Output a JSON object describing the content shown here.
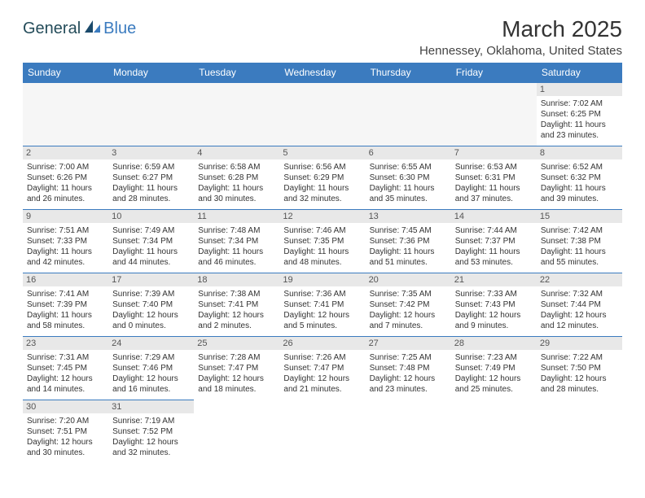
{
  "logo": {
    "general": "General",
    "blue": "Blue"
  },
  "title": "March 2025",
  "location": "Hennessey, Oklahoma, United States",
  "weekdays": [
    "Sunday",
    "Monday",
    "Tuesday",
    "Wednesday",
    "Thursday",
    "Friday",
    "Saturday"
  ],
  "colors": {
    "header_bg": "#3b7bbf",
    "header_text": "#ffffff",
    "daynum_bg": "#e8e8e8",
    "cell_border": "#3b7bbf",
    "empty_bg": "#f6f6f6",
    "text": "#333333"
  },
  "grid": [
    [
      null,
      null,
      null,
      null,
      null,
      null,
      {
        "n": "1",
        "sr": "Sunrise: 7:02 AM",
        "ss": "Sunset: 6:25 PM",
        "dl": "Daylight: 11 hours and 23 minutes."
      }
    ],
    [
      {
        "n": "2",
        "sr": "Sunrise: 7:00 AM",
        "ss": "Sunset: 6:26 PM",
        "dl": "Daylight: 11 hours and 26 minutes."
      },
      {
        "n": "3",
        "sr": "Sunrise: 6:59 AM",
        "ss": "Sunset: 6:27 PM",
        "dl": "Daylight: 11 hours and 28 minutes."
      },
      {
        "n": "4",
        "sr": "Sunrise: 6:58 AM",
        "ss": "Sunset: 6:28 PM",
        "dl": "Daylight: 11 hours and 30 minutes."
      },
      {
        "n": "5",
        "sr": "Sunrise: 6:56 AM",
        "ss": "Sunset: 6:29 PM",
        "dl": "Daylight: 11 hours and 32 minutes."
      },
      {
        "n": "6",
        "sr": "Sunrise: 6:55 AM",
        "ss": "Sunset: 6:30 PM",
        "dl": "Daylight: 11 hours and 35 minutes."
      },
      {
        "n": "7",
        "sr": "Sunrise: 6:53 AM",
        "ss": "Sunset: 6:31 PM",
        "dl": "Daylight: 11 hours and 37 minutes."
      },
      {
        "n": "8",
        "sr": "Sunrise: 6:52 AM",
        "ss": "Sunset: 6:32 PM",
        "dl": "Daylight: 11 hours and 39 minutes."
      }
    ],
    [
      {
        "n": "9",
        "sr": "Sunrise: 7:51 AM",
        "ss": "Sunset: 7:33 PM",
        "dl": "Daylight: 11 hours and 42 minutes."
      },
      {
        "n": "10",
        "sr": "Sunrise: 7:49 AM",
        "ss": "Sunset: 7:34 PM",
        "dl": "Daylight: 11 hours and 44 minutes."
      },
      {
        "n": "11",
        "sr": "Sunrise: 7:48 AM",
        "ss": "Sunset: 7:34 PM",
        "dl": "Daylight: 11 hours and 46 minutes."
      },
      {
        "n": "12",
        "sr": "Sunrise: 7:46 AM",
        "ss": "Sunset: 7:35 PM",
        "dl": "Daylight: 11 hours and 48 minutes."
      },
      {
        "n": "13",
        "sr": "Sunrise: 7:45 AM",
        "ss": "Sunset: 7:36 PM",
        "dl": "Daylight: 11 hours and 51 minutes."
      },
      {
        "n": "14",
        "sr": "Sunrise: 7:44 AM",
        "ss": "Sunset: 7:37 PM",
        "dl": "Daylight: 11 hours and 53 minutes."
      },
      {
        "n": "15",
        "sr": "Sunrise: 7:42 AM",
        "ss": "Sunset: 7:38 PM",
        "dl": "Daylight: 11 hours and 55 minutes."
      }
    ],
    [
      {
        "n": "16",
        "sr": "Sunrise: 7:41 AM",
        "ss": "Sunset: 7:39 PM",
        "dl": "Daylight: 11 hours and 58 minutes."
      },
      {
        "n": "17",
        "sr": "Sunrise: 7:39 AM",
        "ss": "Sunset: 7:40 PM",
        "dl": "Daylight: 12 hours and 0 minutes."
      },
      {
        "n": "18",
        "sr": "Sunrise: 7:38 AM",
        "ss": "Sunset: 7:41 PM",
        "dl": "Daylight: 12 hours and 2 minutes."
      },
      {
        "n": "19",
        "sr": "Sunrise: 7:36 AM",
        "ss": "Sunset: 7:41 PM",
        "dl": "Daylight: 12 hours and 5 minutes."
      },
      {
        "n": "20",
        "sr": "Sunrise: 7:35 AM",
        "ss": "Sunset: 7:42 PM",
        "dl": "Daylight: 12 hours and 7 minutes."
      },
      {
        "n": "21",
        "sr": "Sunrise: 7:33 AM",
        "ss": "Sunset: 7:43 PM",
        "dl": "Daylight: 12 hours and 9 minutes."
      },
      {
        "n": "22",
        "sr": "Sunrise: 7:32 AM",
        "ss": "Sunset: 7:44 PM",
        "dl": "Daylight: 12 hours and 12 minutes."
      }
    ],
    [
      {
        "n": "23",
        "sr": "Sunrise: 7:31 AM",
        "ss": "Sunset: 7:45 PM",
        "dl": "Daylight: 12 hours and 14 minutes."
      },
      {
        "n": "24",
        "sr": "Sunrise: 7:29 AM",
        "ss": "Sunset: 7:46 PM",
        "dl": "Daylight: 12 hours and 16 minutes."
      },
      {
        "n": "25",
        "sr": "Sunrise: 7:28 AM",
        "ss": "Sunset: 7:47 PM",
        "dl": "Daylight: 12 hours and 18 minutes."
      },
      {
        "n": "26",
        "sr": "Sunrise: 7:26 AM",
        "ss": "Sunset: 7:47 PM",
        "dl": "Daylight: 12 hours and 21 minutes."
      },
      {
        "n": "27",
        "sr": "Sunrise: 7:25 AM",
        "ss": "Sunset: 7:48 PM",
        "dl": "Daylight: 12 hours and 23 minutes."
      },
      {
        "n": "28",
        "sr": "Sunrise: 7:23 AM",
        "ss": "Sunset: 7:49 PM",
        "dl": "Daylight: 12 hours and 25 minutes."
      },
      {
        "n": "29",
        "sr": "Sunrise: 7:22 AM",
        "ss": "Sunset: 7:50 PM",
        "dl": "Daylight: 12 hours and 28 minutes."
      }
    ],
    [
      {
        "n": "30",
        "sr": "Sunrise: 7:20 AM",
        "ss": "Sunset: 7:51 PM",
        "dl": "Daylight: 12 hours and 30 minutes."
      },
      {
        "n": "31",
        "sr": "Sunrise: 7:19 AM",
        "ss": "Sunset: 7:52 PM",
        "dl": "Daylight: 12 hours and 32 minutes."
      },
      null,
      null,
      null,
      null,
      null
    ]
  ]
}
